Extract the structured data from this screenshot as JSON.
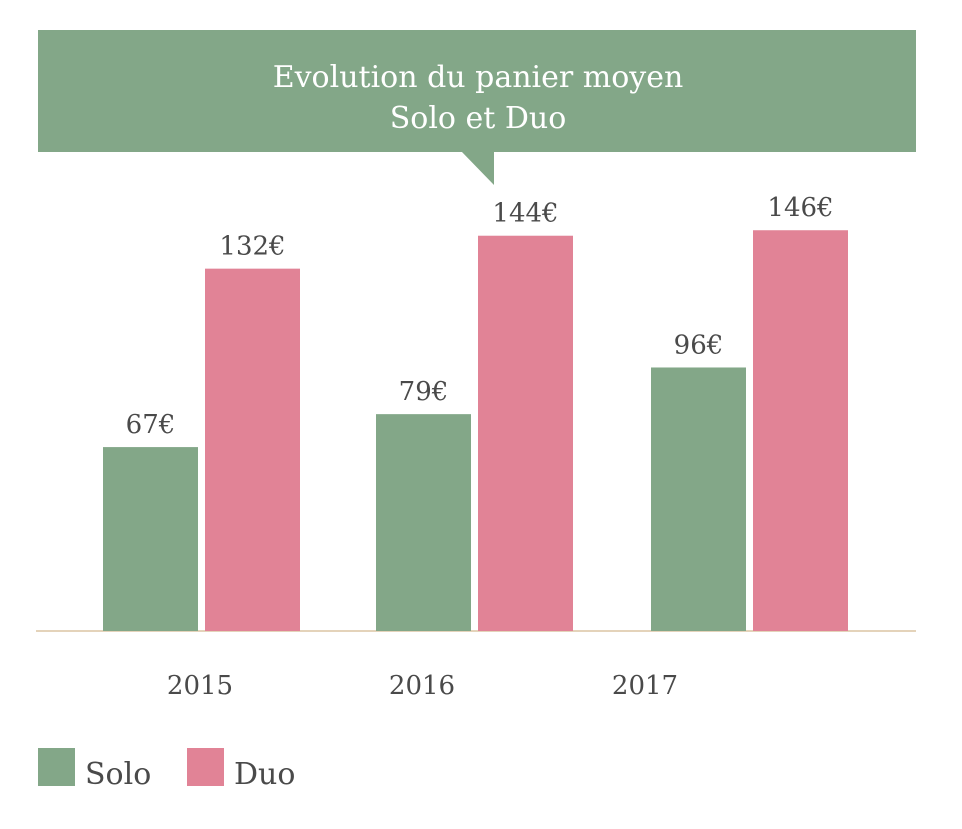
{
  "chart_data": {
    "type": "bar",
    "title": [
      "Evolution du panier moyen",
      "Solo et Duo"
    ],
    "categories": [
      "2015",
      "2016",
      "2017"
    ],
    "series": [
      {
        "name": "Solo",
        "values": [
          67,
          79,
          96
        ],
        "labels": [
          "67€",
          "79€",
          "96€"
        ],
        "color": "#83A788"
      },
      {
        "name": "Duo",
        "values": [
          132,
          144,
          146
        ],
        "labels": [
          "132€",
          "144€",
          "146€"
        ],
        "color": "#E18396"
      }
    ],
    "unit": "€",
    "xlabel": "",
    "ylabel": "",
    "ylim": [
      0,
      160
    ],
    "grid": false,
    "legend": "bottom-left"
  }
}
